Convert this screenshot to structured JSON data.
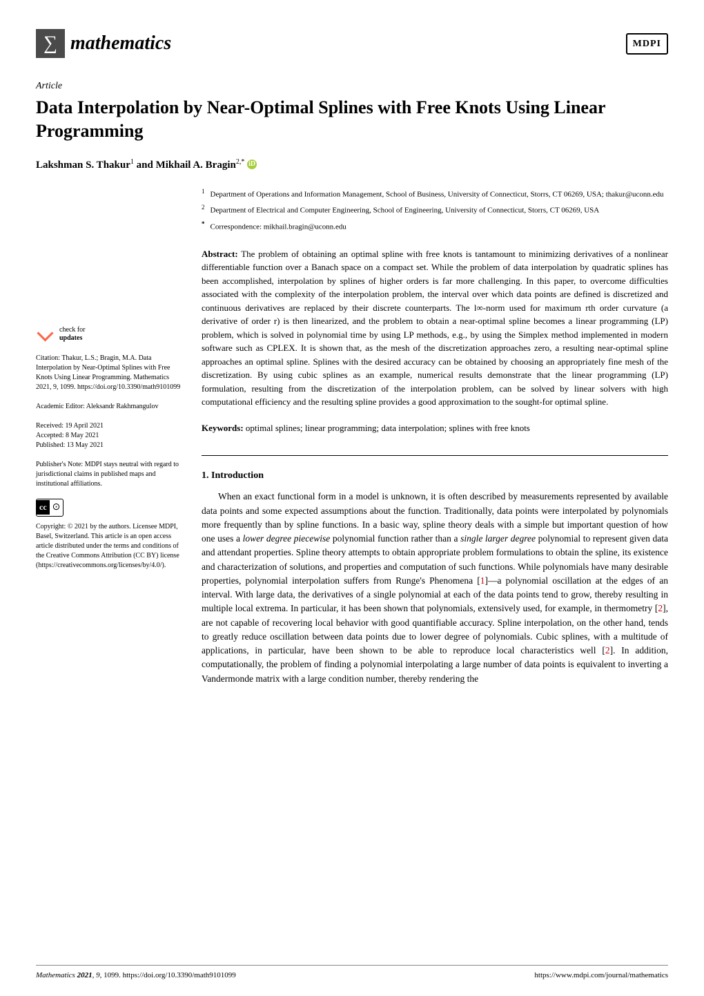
{
  "journal": {
    "name": "mathematics",
    "logo_symbol": "∑",
    "logo_bg_color": "#4a4a4a"
  },
  "publisher": {
    "name": "MDPI"
  },
  "article": {
    "type": "Article",
    "title": "Data Interpolation by Near-Optimal Splines with Free Knots Using Linear Programming",
    "authors_line": "Lakshman S. Thakur ¹ and Mikhail A. Bragin ²,*",
    "author1_name": "Lakshman S. Thakur",
    "author1_sup": "1",
    "author_and": " and ",
    "author2_name": "Mikhail A. Bragin",
    "author2_sup": "2,*"
  },
  "affiliations": [
    {
      "num": "1",
      "text": "Department of Operations and Information Management, School of Business, University of Connecticut, Storrs, CT 06269, USA; thakur@uconn.edu"
    },
    {
      "num": "2",
      "text": "Department of Electrical and Computer Engineering, School of Engineering, University of Connecticut, Storrs, CT 06269, USA"
    },
    {
      "num": "*",
      "text": "Correspondence: mikhail.bragin@uconn.edu"
    }
  ],
  "abstract": {
    "label": "Abstract:",
    "text": " The problem of obtaining an optimal spline with free knots is tantamount to minimizing derivatives of a nonlinear differentiable function over a Banach space on a compact set. While the problem of data interpolation by quadratic splines has been accomplished, interpolation by splines of higher orders is far more challenging. In this paper, to overcome difficulties associated with the complexity of the interpolation problem, the interval over which data points are defined is discretized and continuous derivatives are replaced by their discrete counterparts. The l∞-norm used for maximum rth order curvature (a derivative of order r) is then linearized, and the problem to obtain a near-optimal spline becomes a linear programming (LP) problem, which is solved in polynomial time by using LP methods, e.g., by using the Simplex method implemented in modern software such as CPLEX. It is shown that, as the mesh of the discretization approaches zero, a resulting near-optimal spline approaches an optimal spline. Splines with the desired accuracy can be obtained by choosing an appropriately fine mesh of the discretization. By using cubic splines as an example, numerical results demonstrate that the linear programming (LP) formulation, resulting from the discretization of the interpolation problem, can be solved by linear solvers with high computational efficiency and the resulting spline provides a good approximation to the sought-for optimal spline."
  },
  "keywords": {
    "label": "Keywords:",
    "text": " optimal splines; linear programming; data interpolation; splines with free knots"
  },
  "sidebar": {
    "check_updates_label1": "check for",
    "check_updates_label2": "updates",
    "citation": "Citation: Thakur, L.S.; Bragin, M.A. Data Interpolation by Near-Optimal Splines with Free Knots Using Linear Programming. Mathematics 2021, 9, 1099. https://doi.org/10.3390/math9101099",
    "editor": "Academic Editor: Aleksandr Rakhmangulov",
    "received": "Received: 19 April 2021",
    "accepted": "Accepted: 8 May 2021",
    "published": "Published: 13 May 2021",
    "publishers_note": "Publisher's Note: MDPI stays neutral with regard to jurisdictional claims in published maps and institutional affiliations.",
    "cc_symbol": "cc",
    "by_symbol": "⊙",
    "copyright": "Copyright: © 2021 by the authors. Licensee MDPI, Basel, Switzerland. This article is an open access article distributed under the terms and conditions of the Creative Commons Attribution (CC BY) license (https://creativecommons.org/licenses/by/4.0/)."
  },
  "section1": {
    "heading": "1. Introduction",
    "body_p1a": "When an exact functional form in a model is unknown, it is often described by measurements represented by available data points and some expected assumptions about the function. Traditionally, data points were interpolated by polynomials more frequently than by spline functions. In a basic way, spline theory deals with a simple but important question of how one uses a ",
    "body_p1_em1": "lower degree piecewise",
    "body_p1b": " polynomial function rather than a ",
    "body_p1_em2": "single larger degree",
    "body_p1c": " polynomial to represent given data and attendant properties. Spline theory attempts to obtain appropriate problem formulations to obtain the spline, its existence and characterization of solutions, and properties and computation of such functions. While polynomials have many desirable properties, polynomial interpolation suffers from Runge's Phenomena [",
    "ref1": "1",
    "body_p1d": "]—a polynomial oscillation at the edges of an interval. With large data, the derivatives of a single polynomial at each of the data points tend to grow, thereby resulting in multiple local extrema. In particular, it has been shown that polynomials, extensively used, for example, in thermometry [",
    "ref2a": "2",
    "body_p1e": "], are not capable of recovering local behavior with good quantifiable accuracy. Spline interpolation, on the other hand, tends to greatly reduce oscillation between data points due to lower degree of polynomials. Cubic splines, with a multitude of applications, in particular, have been shown to be able to reproduce local characteristics well [",
    "ref2b": "2",
    "body_p1f": "]. In addition, computationally, the problem of finding a polynomial interpolating a large number of data points is equivalent to inverting a Vandermonde matrix with a large condition number, thereby rendering the"
  },
  "footer": {
    "left_journal": "Mathematics ",
    "left_year": "2021",
    "left_vol": ", 9",
    "left_rest": ", 1099. https://doi.org/10.3390/math9101099",
    "right": "https://www.mdpi.com/journal/mathematics"
  },
  "colors": {
    "ref_link": "#cc0000",
    "orcid_bg": "#a6ce39"
  }
}
